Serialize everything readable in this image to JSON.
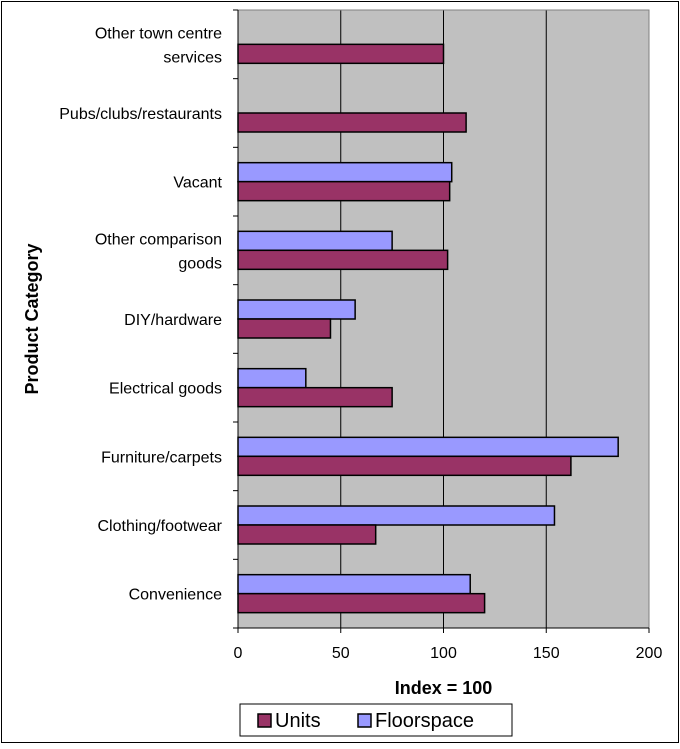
{
  "colors": {
    "units": "#993366",
    "floorspace": "#9999ff",
    "plot_bg": "#c0c0c0",
    "gridline": "#000000"
  },
  "chart_data": {
    "type": "bar",
    "orientation": "horizontal",
    "title": "",
    "xlabel": "Index = 100",
    "ylabel": "Product Category",
    "xlim": [
      0,
      200
    ],
    "xticks": [
      0,
      50,
      100,
      150,
      200
    ],
    "grid": "vertical",
    "legend_position": "bottom",
    "categories": [
      [
        "Other town centre",
        "services"
      ],
      [
        "Pubs/clubs/restaurants"
      ],
      [
        "Vacant"
      ],
      [
        "Other comparison",
        "goods"
      ],
      [
        "DIY/hardware"
      ],
      [
        "Electrical goods"
      ],
      [
        "Furniture/carpets"
      ],
      [
        "Clothing/footwear"
      ],
      [
        "Convenience"
      ]
    ],
    "series": [
      {
        "name": "Units",
        "values": [
          100,
          111,
          103,
          102,
          45,
          75,
          162,
          67,
          120
        ]
      },
      {
        "name": "Floorspace",
        "values": [
          null,
          null,
          104,
          75,
          57,
          33,
          185,
          154,
          113
        ]
      }
    ]
  }
}
